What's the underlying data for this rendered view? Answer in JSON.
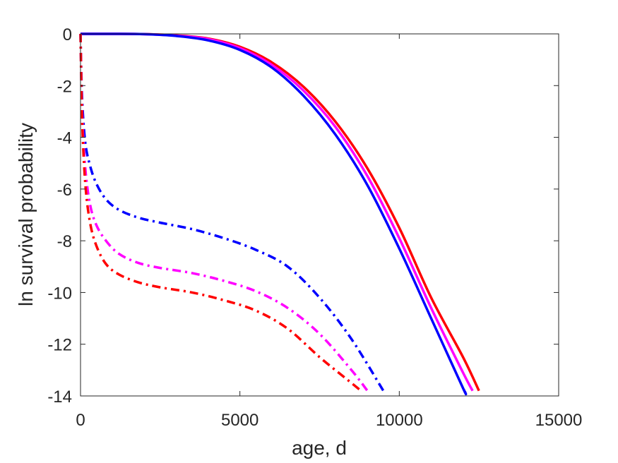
{
  "chart_data": {
    "type": "line",
    "title": "",
    "xlabel": "age, d",
    "ylabel": "ln survival probability",
    "xlim": [
      0,
      15000
    ],
    "ylim": [
      -14,
      0
    ],
    "xticks": [
      0,
      5000,
      10000,
      15000
    ],
    "xtick_labels": [
      "0",
      "5000",
      "10000",
      "15000"
    ],
    "yticks": [
      0,
      -2,
      -4,
      -6,
      -8,
      -10,
      -12,
      -14
    ],
    "ytick_labels": [
      "0",
      "-2",
      "-4",
      "-6",
      "-8",
      "-10",
      "-12",
      "-14"
    ],
    "grid": false,
    "legend": "none",
    "series": [
      {
        "color": "#FF0000",
        "style": "solid",
        "x": [
          0,
          1000,
          2000,
          3000,
          4000,
          5000,
          6000,
          7000,
          8000,
          9000,
          10000,
          11000,
          12000,
          12500
        ],
        "y": [
          0,
          0,
          -0.01,
          -0.06,
          -0.18,
          -0.5,
          -1.1,
          -2.05,
          -3.4,
          -5.2,
          -7.5,
          -10.2,
          -12.5,
          -13.8
        ]
      },
      {
        "color": "#FF00FF",
        "style": "solid",
        "x": [
          0,
          1000,
          2000,
          3000,
          4000,
          5000,
          6000,
          7000,
          8000,
          9000,
          10000,
          11000,
          12000,
          12300
        ],
        "y": [
          0,
          0,
          -0.01,
          -0.07,
          -0.2,
          -0.55,
          -1.2,
          -2.2,
          -3.6,
          -5.5,
          -7.9,
          -10.6,
          -13.1,
          -13.8
        ]
      },
      {
        "color": "#0000FF",
        "style": "solid",
        "x": [
          0,
          1000,
          2000,
          3000,
          4000,
          5000,
          6000,
          7000,
          8000,
          9000,
          10000,
          11000,
          12000,
          12050
        ],
        "y": [
          0,
          0,
          -0.01,
          -0.08,
          -0.25,
          -0.62,
          -1.3,
          -2.4,
          -3.9,
          -5.85,
          -8.3,
          -11.0,
          -13.7,
          -13.8
        ]
      },
      {
        "color": "#0000FF",
        "style": "dashdot",
        "x": [
          0,
          50,
          150,
          300,
          500,
          800,
          1200,
          1800,
          2500,
          3500,
          4500,
          5500,
          6500,
          7500,
          8500,
          9500
        ],
        "y": [
          0,
          -2.5,
          -4.2,
          -5.1,
          -5.8,
          -6.4,
          -6.8,
          -7.1,
          -7.3,
          -7.55,
          -7.9,
          -8.35,
          -9.0,
          -10.2,
          -11.8,
          -13.8
        ]
      },
      {
        "color": "#FF00FF",
        "style": "dashdot",
        "x": [
          0,
          50,
          150,
          300,
          500,
          800,
          1200,
          1800,
          2500,
          3500,
          4500,
          5500,
          6500,
          7500,
          8500,
          9000
        ],
        "y": [
          0,
          -3.0,
          -5.2,
          -6.6,
          -7.4,
          -8.0,
          -8.5,
          -8.85,
          -9.05,
          -9.25,
          -9.55,
          -9.95,
          -10.6,
          -11.6,
          -13.0,
          -13.8
        ]
      },
      {
        "color": "#FF0000",
        "style": "dashdot",
        "x": [
          0,
          50,
          150,
          300,
          500,
          800,
          1200,
          1800,
          2500,
          3500,
          4500,
          5500,
          6500,
          7500,
          8300,
          8800
        ],
        "y": [
          0,
          -3.3,
          -5.8,
          -7.3,
          -8.2,
          -8.9,
          -9.3,
          -9.6,
          -9.8,
          -10.0,
          -10.3,
          -10.7,
          -11.4,
          -12.5,
          -13.3,
          -13.8
        ]
      }
    ]
  }
}
